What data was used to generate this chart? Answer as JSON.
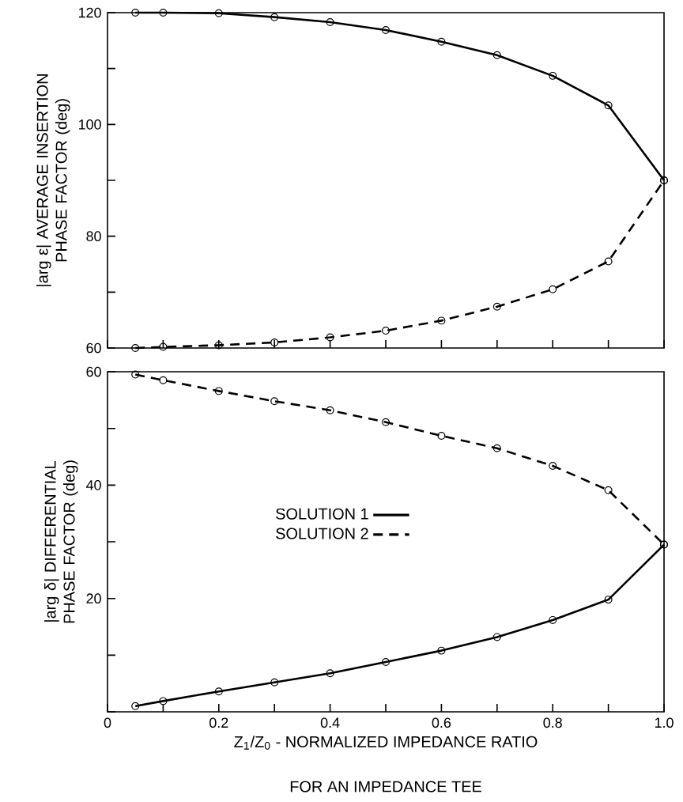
{
  "chart_data": [
    {
      "type": "line",
      "ylabel": "|arg ε| AVERAGE INSERTION PHASE FACTOR (deg)",
      "x": [
        0.05,
        0.1,
        0.2,
        0.3,
        0.4,
        0.5,
        0.6,
        0.7,
        0.8,
        0.9,
        1.0
      ],
      "series": [
        {
          "color": "#000000",
          "line_style": "solid",
          "values": [
            120,
            120,
            119.9,
            119.2,
            118.3,
            116.9,
            114.8,
            112.4,
            108.7,
            103.4,
            90
          ]
        },
        {
          "color": "#000000",
          "line_style": "dashed",
          "values": [
            60,
            60.2,
            60.5,
            61,
            61.9,
            63.1,
            64.9,
            67.4,
            70.5,
            75.5,
            90
          ]
        }
      ],
      "xlim": [
        0,
        1
      ],
      "xticks": [
        {
          "value": 0,
          "label": null
        },
        {
          "value": 0.1,
          "label": null
        },
        {
          "value": 0.2,
          "label": null
        },
        {
          "value": 0.3,
          "label": null
        },
        {
          "value": 0.4,
          "label": null
        },
        {
          "value": 0.5,
          "label": null
        },
        {
          "value": 0.6,
          "label": null
        },
        {
          "value": 0.7,
          "label": null
        },
        {
          "value": 0.8,
          "label": null
        },
        {
          "value": 0.9,
          "label": null
        },
        {
          "value": 1,
          "label": null
        }
      ],
      "ylim": [
        60,
        120
      ],
      "yticks": [
        60,
        {
          "value": 70,
          "label": null
        },
        80,
        {
          "value": 90,
          "label": null
        },
        100,
        {
          "value": 110,
          "label": null
        },
        120
      ],
      "tick_labels": "y",
      "marker": "circle",
      "grid": false,
      "legend": false
    },
    {
      "type": "line",
      "ylabel": "|arg δ| DIFFERENTIAL PHASE FACTOR (deg)",
      "xlabel": "Z$_{1}$/Z$_{0}$ - NORMALIZED IMPEDANCE RATIO",
      "annotations": [
        "FOR AN IMPEDANCE TEE"
      ],
      "x": [
        0.05,
        0.1,
        0.2,
        0.3,
        0.4,
        0.5,
        0.6,
        0.7,
        0.8,
        0.9,
        1.0
      ],
      "series": [
        {
          "name": "SOLUTION 1",
          "color": "#000000",
          "line_style": "solid",
          "values": [
            1.0,
            1.9,
            3.6,
            5.2,
            6.8,
            8.8,
            10.8,
            13.2,
            16.2,
            19.8,
            29.5
          ]
        },
        {
          "name": "SOLUTION 2",
          "color": "#000000",
          "line_style": "dashed",
          "values": [
            59.5,
            58.5,
            56.6,
            54.8,
            53.2,
            51.1,
            48.7,
            46.5,
            43.4,
            39.1,
            29.5
          ]
        }
      ],
      "xlim": [
        0,
        1
      ],
      "xticks": [
        0,
        {
          "value": 0.1,
          "label": null
        },
        {
          "value": 0.2,
          "label": "0.2"
        },
        {
          "value": 0.3,
          "label": null
        },
        {
          "value": 0.4,
          "label": "0.4"
        },
        {
          "value": 0.5,
          "label": null
        },
        {
          "value": 0.6,
          "label": "0.6"
        },
        {
          "value": 0.7,
          "label": null
        },
        {
          "value": 0.8,
          "label": "0.8"
        },
        {
          "value": 0.9,
          "label": null
        },
        {
          "value": 1,
          "label": "1.0"
        }
      ],
      "ylim": [
        0,
        60
      ],
      "yticks": [
        {
          "value": 0,
          "label": null
        },
        {
          "value": 10,
          "label": null
        },
        20,
        {
          "value": 30,
          "label": null
        },
        40,
        {
          "value": 50,
          "label": null
        },
        60
      ],
      "marker": "circle",
      "grid": false,
      "legend": "center"
    }
  ]
}
